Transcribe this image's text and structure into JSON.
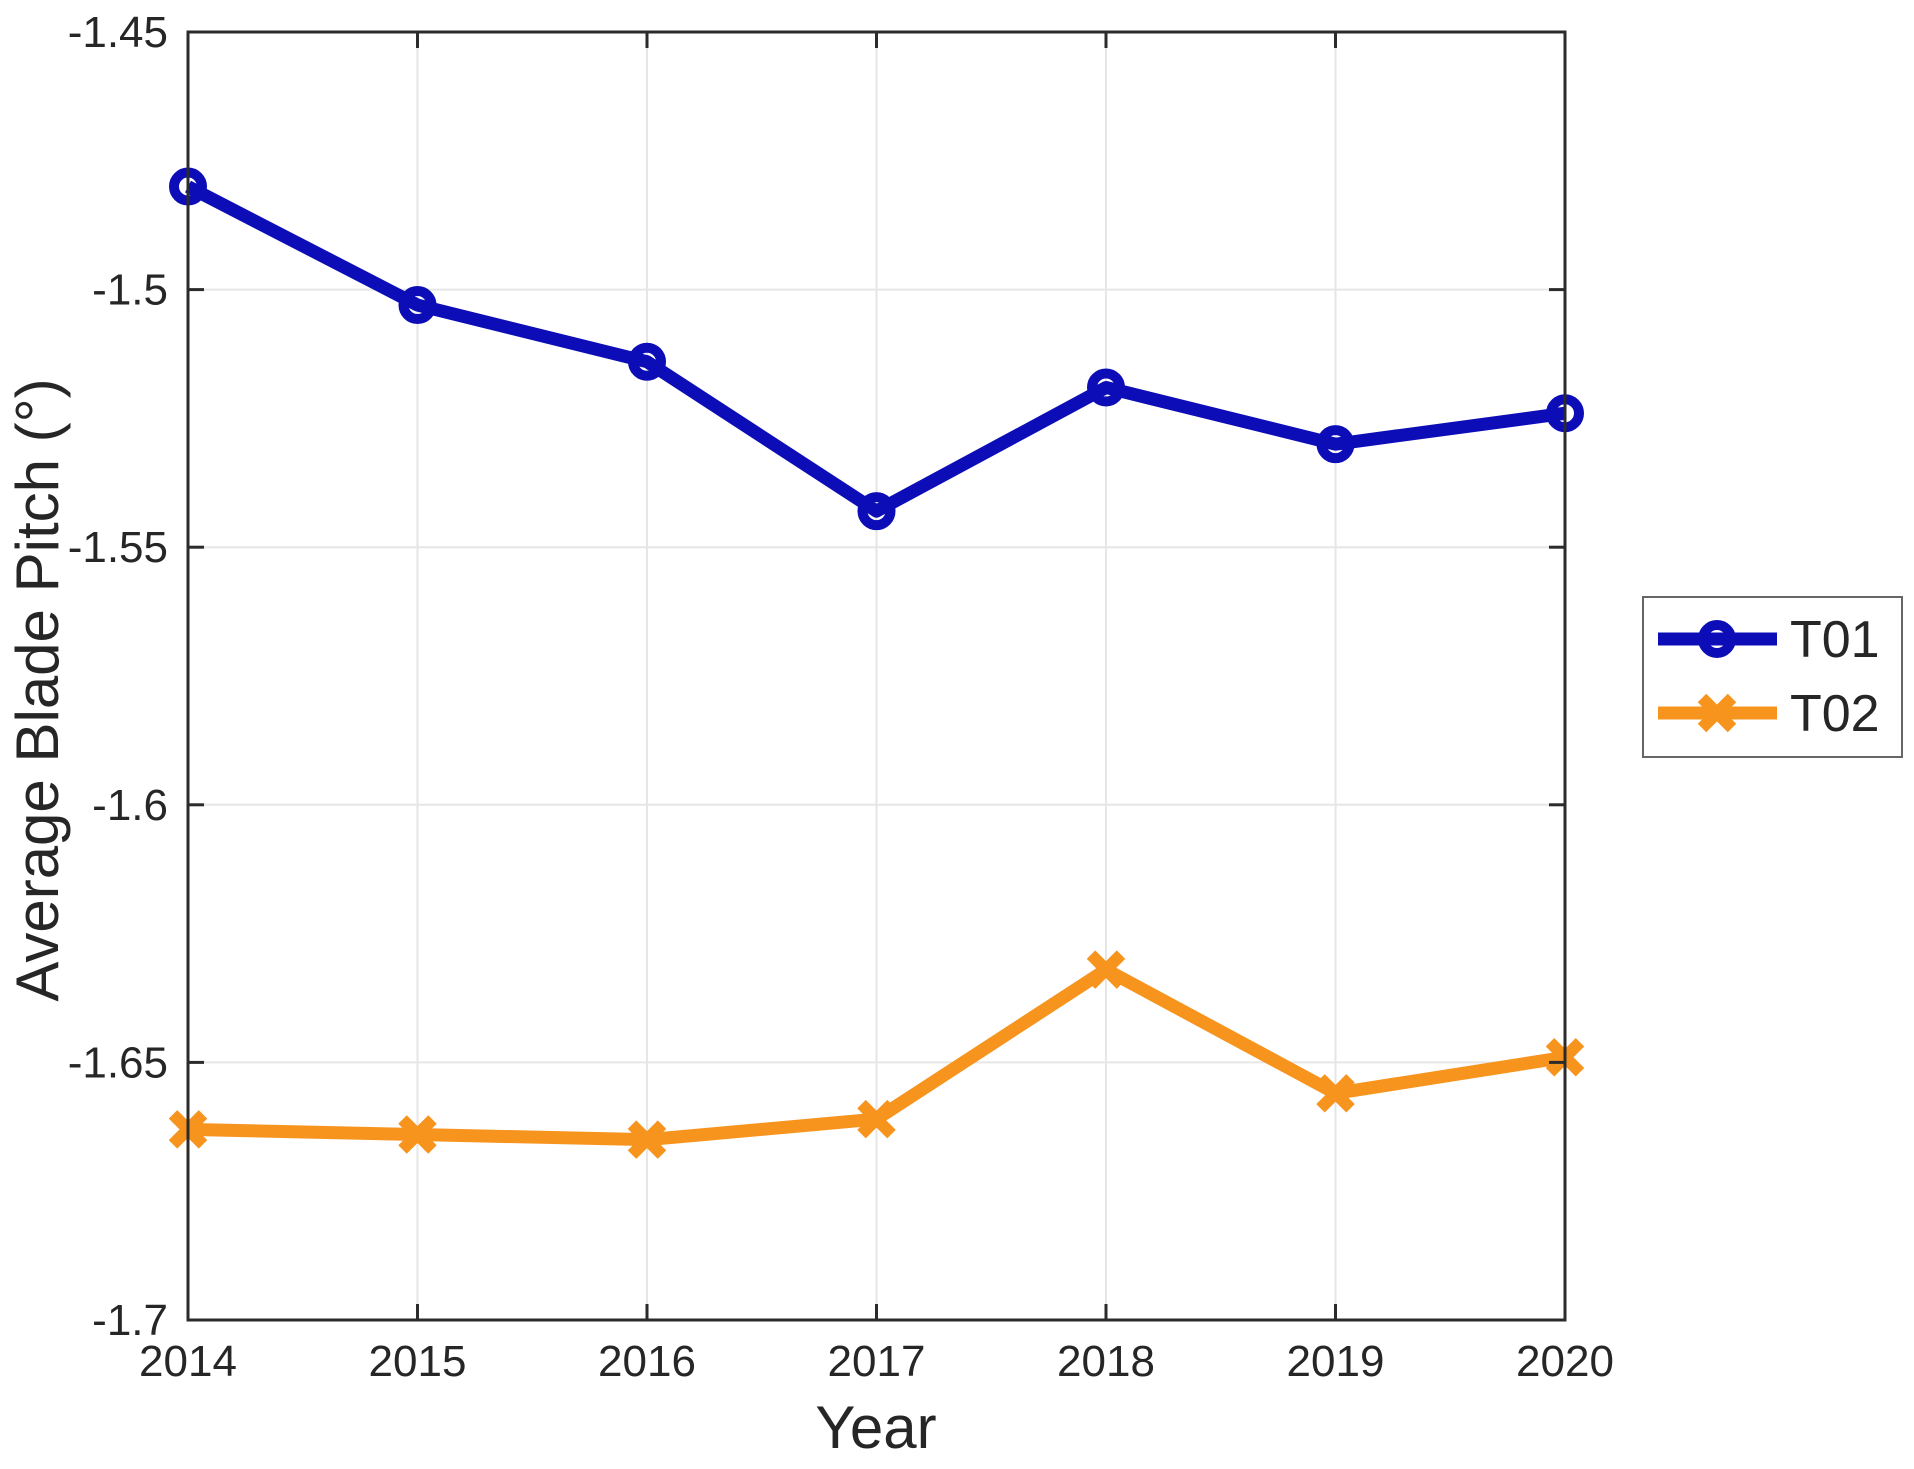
{
  "chart_data": {
    "type": "line",
    "title": "",
    "xlabel": "Year",
    "ylabel": "Average Blade Pitch (°)",
    "x": [
      2014,
      2015,
      2016,
      2017,
      2018,
      2019,
      2020
    ],
    "series": [
      {
        "name": "T01",
        "color": "#0D0DB8",
        "marker": "circle",
        "values": [
          -1.48,
          -1.503,
          -1.514,
          -1.543,
          -1.519,
          -1.53,
          -1.524
        ]
      },
      {
        "name": "T02",
        "color": "#F7941E",
        "marker": "x",
        "values": [
          -1.663,
          -1.664,
          -1.665,
          -1.661,
          -1.632,
          -1.656,
          -1.649
        ]
      }
    ],
    "xlim": [
      2014,
      2020
    ],
    "ylim": [
      -1.7,
      -1.45
    ],
    "xticks": {
      "values": [
        2014,
        2015,
        2016,
        2017,
        2018,
        2019,
        2020
      ],
      "labels": [
        "2014",
        "2015",
        "2016",
        "2017",
        "2018",
        "2019",
        "2020"
      ]
    },
    "yticks": {
      "values": [
        -1.45,
        -1.5,
        -1.55,
        -1.6,
        -1.65,
        -1.7
      ],
      "labels": [
        "-1.45",
        "-1.5",
        "-1.55",
        "-1.6",
        "-1.65",
        "-1.7"
      ]
    },
    "grid": true,
    "legend": {
      "position": "middle-right",
      "items": [
        "T01",
        "T02"
      ]
    },
    "axis_color": "#2B2B2B",
    "grid_color": "#E6E6E6",
    "text_color": "#262626",
    "background": "#FFFFFF"
  }
}
